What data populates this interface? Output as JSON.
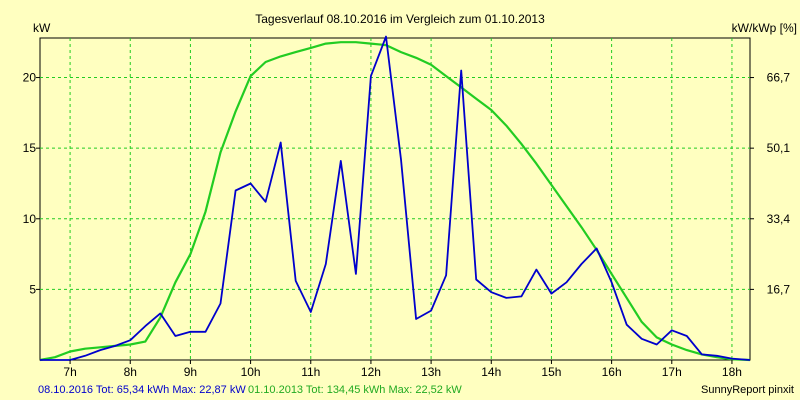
{
  "chart_data": {
    "type": "line",
    "title": "Tagesverlauf 08.10.2016 im Vergleich zum 01.10.2013",
    "ylabel_left": "kW",
    "ylabel_right": "kW/kWp [%]",
    "x_ticks": [
      "7h",
      "8h",
      "9h",
      "10h",
      "11h",
      "12h",
      "13h",
      "14h",
      "15h",
      "16h",
      "17h",
      "18h"
    ],
    "xlim": [
      6.5,
      18.3
    ],
    "ylim": [
      0,
      22.8
    ],
    "y_ticks_left": [
      {
        "value": 5,
        "label": "5"
      },
      {
        "value": 10,
        "label": "10"
      },
      {
        "value": 15,
        "label": "15"
      },
      {
        "value": 20,
        "label": "20"
      }
    ],
    "y_ticks_right": [
      {
        "value": 5,
        "label": "16,7"
      },
      {
        "value": 10,
        "label": "33,4"
      },
      {
        "value": 15,
        "label": "50,1"
      },
      {
        "value": 20,
        "label": "66,7"
      }
    ],
    "grid": true,
    "series": [
      {
        "name": "08.10.2016",
        "color": "#0000cc",
        "x": [
          6.5,
          7.0,
          7.25,
          7.5,
          7.75,
          8.0,
          8.25,
          8.5,
          8.75,
          9.0,
          9.25,
          9.5,
          9.75,
          10.0,
          10.25,
          10.5,
          10.75,
          11.0,
          11.25,
          11.5,
          11.75,
          12.0,
          12.25,
          12.5,
          12.75,
          13.0,
          13.25,
          13.5,
          13.75,
          14.0,
          14.25,
          14.5,
          14.75,
          15.0,
          15.25,
          15.5,
          15.75,
          16.0,
          16.25,
          16.5,
          16.75,
          17.0,
          17.25,
          17.5,
          17.75,
          18.0,
          18.3
        ],
        "y": [
          0,
          0,
          0.3,
          0.7,
          1.0,
          1.4,
          2.4,
          3.3,
          1.7,
          2.0,
          2.0,
          4.0,
          12.0,
          12.5,
          11.2,
          15.4,
          5.6,
          3.4,
          6.8,
          14.1,
          6.1,
          20.1,
          22.9,
          14.2,
          2.9,
          3.5,
          6.0,
          20.5,
          5.7,
          4.8,
          4.4,
          4.5,
          6.4,
          4.7,
          5.5,
          6.8,
          7.9,
          5.5,
          2.5,
          1.5,
          1.1,
          2.1,
          1.7,
          0.4,
          0.3,
          0.1,
          0
        ]
      },
      {
        "name": "01.10.2013",
        "color": "#22cc22",
        "x": [
          6.5,
          6.75,
          7.0,
          7.25,
          7.5,
          7.75,
          8.0,
          8.25,
          8.5,
          8.75,
          9.0,
          9.25,
          9.5,
          9.75,
          10.0,
          10.25,
          10.5,
          10.75,
          11.0,
          11.25,
          11.5,
          11.75,
          12.0,
          12.25,
          12.5,
          12.75,
          13.0,
          13.25,
          13.5,
          13.75,
          14.0,
          14.25,
          14.5,
          14.75,
          15.0,
          15.25,
          15.5,
          15.75,
          16.0,
          16.25,
          16.5,
          16.75,
          17.0,
          17.25,
          17.5,
          17.75,
          18.0,
          18.3
        ],
        "y": [
          0,
          0.2,
          0.6,
          0.8,
          0.9,
          1.0,
          1.1,
          1.3,
          3.0,
          5.5,
          7.5,
          10.5,
          14.7,
          17.6,
          20.1,
          21.1,
          21.5,
          21.8,
          22.1,
          22.4,
          22.5,
          22.5,
          22.4,
          22.3,
          21.8,
          21.4,
          20.9,
          20.1,
          19.3,
          18.5,
          17.7,
          16.6,
          15.3,
          13.9,
          12.4,
          10.9,
          9.4,
          7.8,
          6.1,
          4.4,
          2.7,
          1.6,
          1.1,
          0.7,
          0.4,
          0.2,
          0.05,
          0
        ]
      }
    ]
  },
  "footer": {
    "series1_text": "08.10.2016 Tot: 65,34 kWh Max: 22,87 kW",
    "series2_text": "01.10.2013 Tot: 134,45 kWh Max: 22,52 kW",
    "credit": "SunnyReport pinxit"
  }
}
